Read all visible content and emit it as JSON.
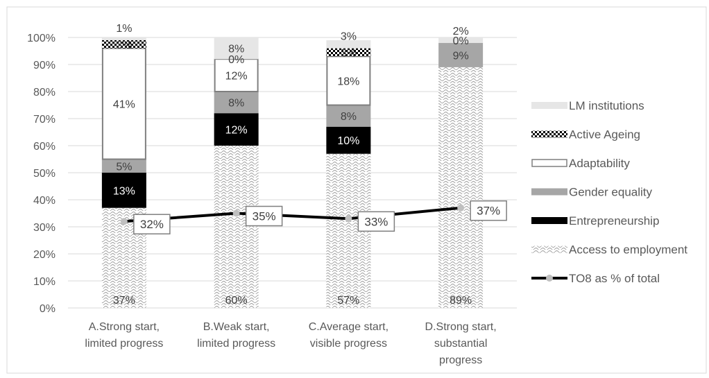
{
  "colors": {
    "axis_text": "#595959",
    "gridline": "#d9d9d9",
    "frame": "#d9d9d9",
    "lm_institutions": "#e6e6e6",
    "gender_equality": "#a6a6a6",
    "entrepreneurship": "#000000",
    "adaptability_border": "#7f7f7f",
    "line": "#000000",
    "marker": "#bfbfbf",
    "label_box_border": "#7f7f7f"
  },
  "chart_data": {
    "type": "bar",
    "stacked": true,
    "title": "",
    "xlabel": "",
    "ylabel": "",
    "ylim": [
      0,
      100
    ],
    "yticks": [
      "0%",
      "10%",
      "20%",
      "30%",
      "40%",
      "50%",
      "60%",
      "70%",
      "80%",
      "90%",
      "100%"
    ],
    "categories": [
      [
        "A.Strong start,",
        "limited progress"
      ],
      [
        "B.Weak start,",
        "limited progress"
      ],
      [
        "C.Average start,",
        "visible progress"
      ],
      [
        "D.Strong start,",
        "substantial",
        "progress"
      ]
    ],
    "series": [
      {
        "name": "Access to employment",
        "key": "access",
        "values": [
          37,
          60,
          57,
          89
        ],
        "labels": [
          "37%",
          "60%",
          "57%",
          "89%"
        ]
      },
      {
        "name": "Entrepreneurship",
        "key": "entre",
        "values": [
          13,
          12,
          10,
          0
        ],
        "labels": [
          "13%",
          "12%",
          "10%",
          ""
        ]
      },
      {
        "name": "Gender equality",
        "key": "gender",
        "values": [
          5,
          8,
          8,
          9
        ],
        "labels": [
          "5%",
          "8%",
          "8%",
          "9%"
        ]
      },
      {
        "name": "Adaptability",
        "key": "adapt",
        "values": [
          41,
          12,
          18,
          0
        ],
        "labels": [
          "41%",
          "12%",
          "18%",
          "0%"
        ]
      },
      {
        "name": "Active Ageing",
        "key": "ageing",
        "values": [
          3,
          0,
          3,
          0
        ],
        "labels": [
          "3%",
          "0%",
          "3%",
          ""
        ]
      },
      {
        "name": "LM institutions",
        "key": "lm",
        "values": [
          1,
          8,
          3,
          2
        ],
        "labels": [
          "1%",
          "8%",
          "3%",
          "2%"
        ]
      }
    ],
    "line": {
      "name": "TO8 as % of total",
      "values": [
        32,
        35,
        33,
        37
      ],
      "labels": [
        "32%",
        "35%",
        "33%",
        "37%"
      ]
    },
    "legend": {
      "position": "right",
      "order": [
        "LM institutions",
        "Active Ageing",
        "Adaptability",
        "Gender equality",
        "Entrepreneurship",
        "Access to employment",
        "TO8 as % of total"
      ]
    },
    "grid": true
  }
}
